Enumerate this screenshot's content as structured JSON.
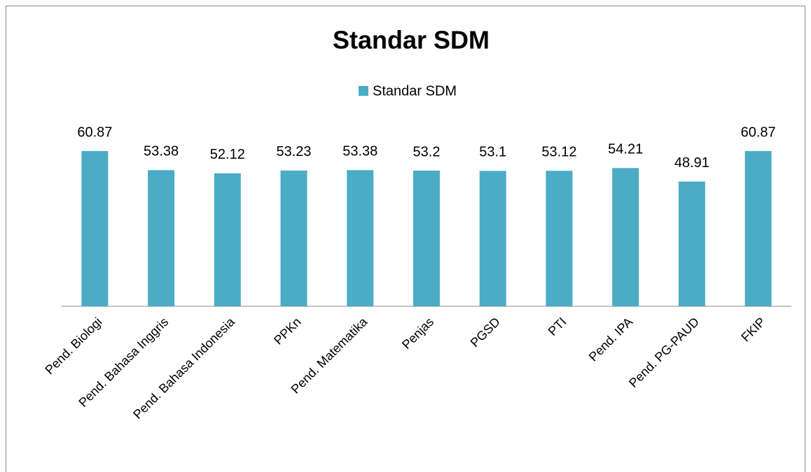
{
  "chart_data": {
    "type": "bar",
    "title": "Standar SDM",
    "categories": [
      "Pend. Biologi",
      "Pend. Bahasa Inggris",
      "Pend. Bahasa Indonesia",
      "PPKn",
      "Pend. Matematika",
      "Penjas",
      "PGSD",
      "PTI",
      "Pend. IPA",
      "Pend. PG-PAUD",
      "FKIP"
    ],
    "series": [
      {
        "name": "Standar SDM",
        "color": "#4bacc6",
        "values": [
          60.87,
          53.38,
          52.12,
          53.23,
          53.38,
          53.2,
          53.1,
          53.12,
          54.21,
          48.91,
          60.87
        ]
      }
    ],
    "legend": "top"
  }
}
